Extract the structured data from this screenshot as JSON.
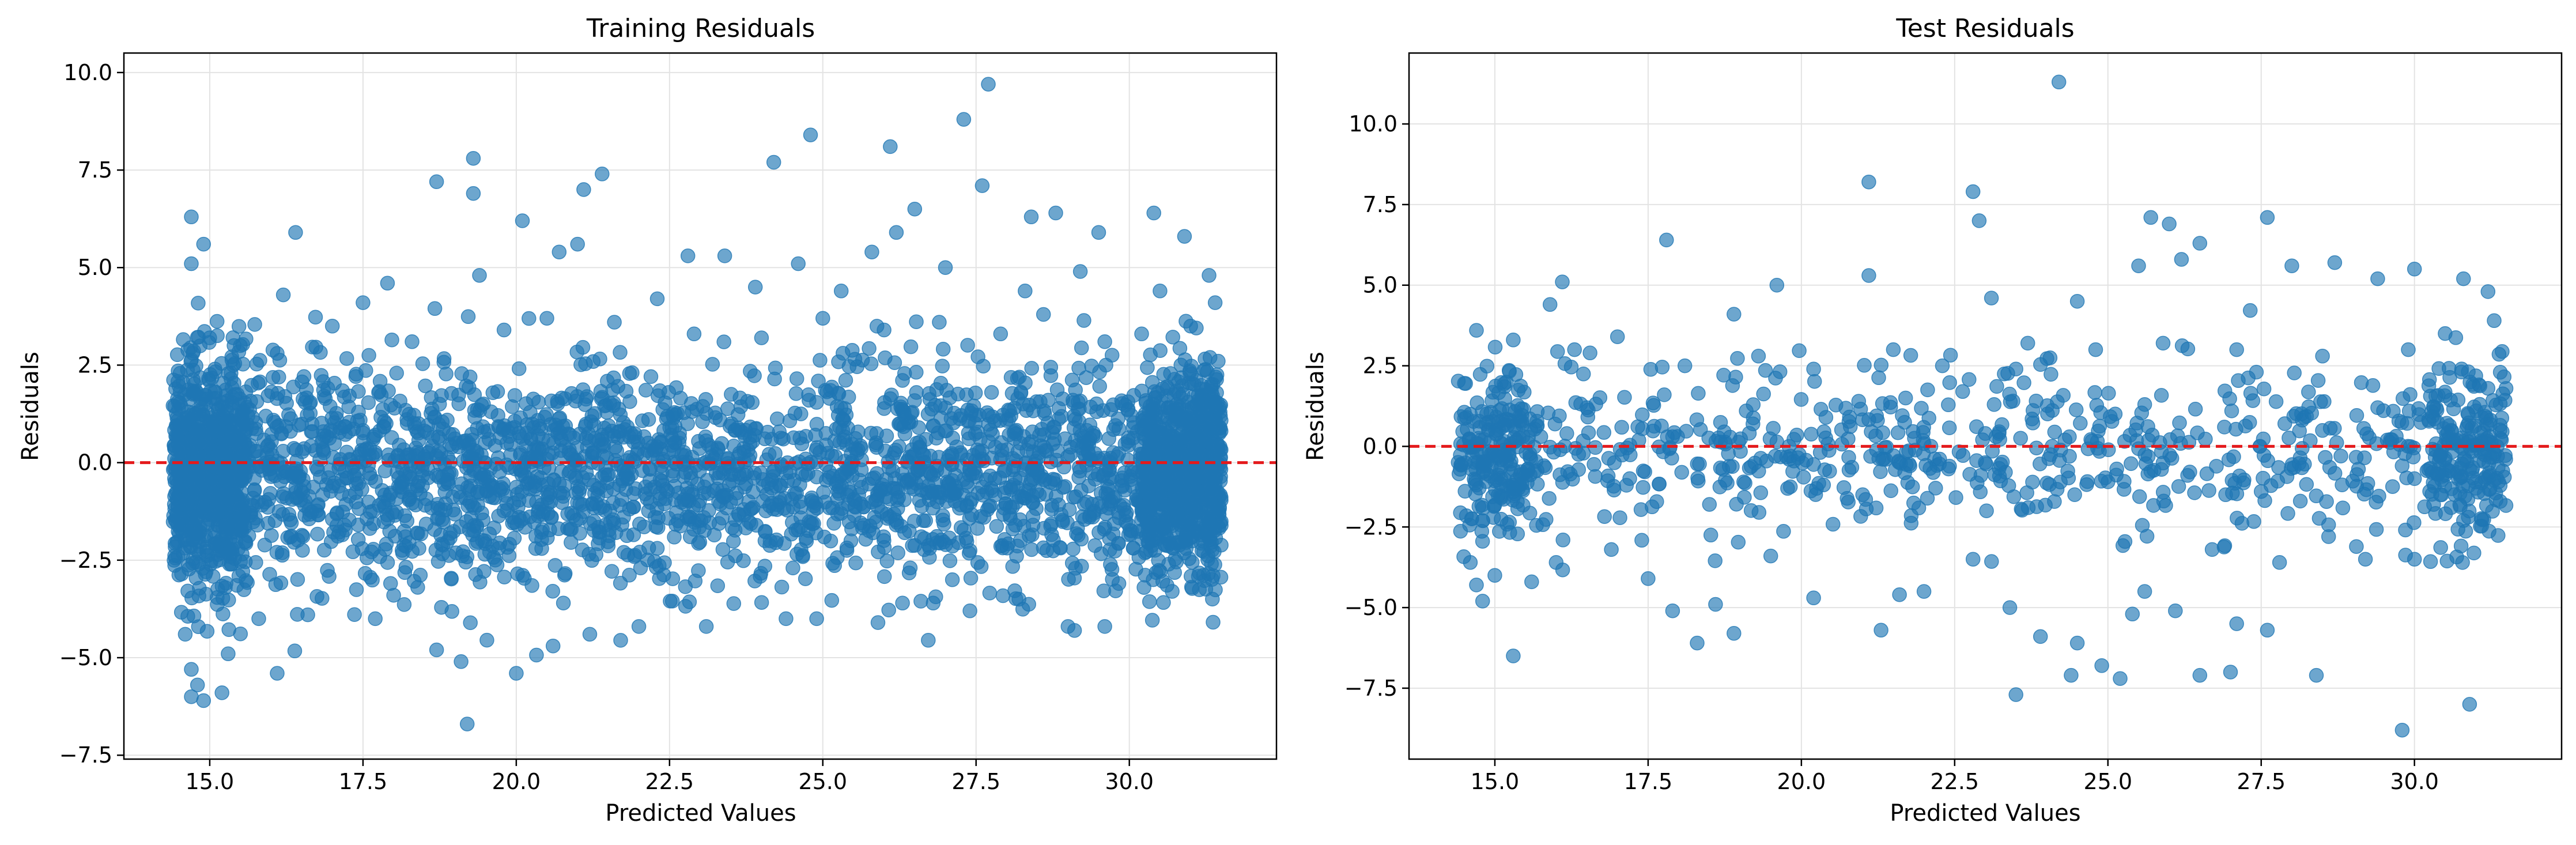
{
  "chart_data": [
    {
      "type": "scatter",
      "title": "Training Residuals",
      "xlabel": "Predicted Values",
      "ylabel": "Residuals",
      "xlim": [
        13.6,
        32.4
      ],
      "ylim": [
        -7.6,
        10.5
      ],
      "xticks": [
        15.0,
        17.5,
        20.0,
        22.5,
        25.0,
        27.5,
        30.0
      ],
      "xtick_labels": [
        "15.0",
        "17.5",
        "20.0",
        "22.5",
        "25.0",
        "27.5",
        "30.0"
      ],
      "yticks": [
        -7.5,
        -5.0,
        -2.5,
        0.0,
        2.5,
        5.0,
        7.5,
        10.0
      ],
      "ytick_labels": [
        "−7.5",
        "−5.0",
        "−2.5",
        "0.0",
        "2.5",
        "5.0",
        "7.5",
        "10.0"
      ],
      "grid": true,
      "reference_line": {
        "y": 0,
        "style": "dashed",
        "color": "#e41a1c"
      },
      "point_color": "#1f77b4",
      "point_alpha": 0.65,
      "series": [
        {
          "values": [
            [
              27.7,
              9.7
            ],
            [
              27.3,
              8.8
            ],
            [
              24.8,
              8.4
            ],
            [
              26.1,
              8.1
            ],
            [
              19.3,
              7.8
            ],
            [
              24.2,
              7.7
            ],
            [
              21.4,
              7.4
            ],
            [
              18.7,
              7.2
            ],
            [
              27.6,
              7.1
            ],
            [
              19.3,
              6.9
            ],
            [
              21.1,
              7.0
            ],
            [
              26.5,
              6.5
            ],
            [
              28.8,
              6.4
            ],
            [
              30.4,
              6.4
            ],
            [
              28.4,
              6.3
            ],
            [
              20.1,
              6.2
            ],
            [
              14.7,
              6.3
            ],
            [
              16.4,
              5.9
            ],
            [
              29.5,
              5.9
            ],
            [
              30.9,
              5.8
            ],
            [
              26.2,
              5.9
            ],
            [
              14.9,
              5.6
            ],
            [
              21.0,
              5.6
            ],
            [
              20.7,
              5.4
            ],
            [
              25.8,
              5.4
            ],
            [
              22.8,
              5.3
            ],
            [
              23.4,
              5.3
            ],
            [
              24.6,
              5.1
            ],
            [
              14.7,
              5.1
            ],
            [
              31.3,
              4.8
            ],
            [
              27.0,
              5.0
            ],
            [
              19.4,
              4.8
            ],
            [
              28.3,
              4.4
            ],
            [
              16.2,
              4.3
            ],
            [
              30.5,
              4.4
            ],
            [
              17.9,
              4.6
            ],
            [
              23.9,
              4.5
            ],
            [
              25.3,
              4.4
            ],
            [
              29.2,
              4.9
            ],
            [
              17.5,
              4.1
            ],
            [
              22.3,
              4.2
            ],
            [
              31.4,
              4.1
            ],
            [
              15.0,
              3.2
            ],
            [
              15.5,
              3.0
            ],
            [
              16.1,
              2.8
            ],
            [
              17.0,
              3.5
            ],
            [
              18.3,
              3.1
            ],
            [
              19.8,
              3.4
            ],
            [
              20.5,
              3.7
            ],
            [
              21.6,
              3.6
            ],
            [
              22.9,
              3.3
            ],
            [
              24.0,
              3.2
            ],
            [
              25.0,
              3.7
            ],
            [
              26.0,
              3.4
            ],
            [
              26.9,
              3.6
            ],
            [
              27.9,
              3.3
            ],
            [
              28.6,
              3.8
            ],
            [
              29.6,
              3.1
            ],
            [
              30.2,
              3.3
            ],
            [
              31.0,
              3.5
            ],
            [
              14.6,
              -4.4
            ],
            [
              14.7,
              -5.3
            ],
            [
              14.8,
              -5.7
            ],
            [
              14.9,
              -6.1
            ],
            [
              14.7,
              -6.0
            ],
            [
              15.2,
              -5.9
            ],
            [
              15.3,
              -4.9
            ],
            [
              16.1,
              -5.4
            ],
            [
              19.2,
              -6.7
            ],
            [
              20.0,
              -5.4
            ],
            [
              19.1,
              -5.1
            ],
            [
              18.7,
              -4.8
            ],
            [
              23.1,
              -4.2
            ],
            [
              24.4,
              -4.0
            ],
            [
              25.9,
              -4.1
            ],
            [
              27.4,
              -3.8
            ],
            [
              29.0,
              -4.2
            ],
            [
              29.6,
              -4.2
            ],
            [
              30.7,
              -3.3
            ],
            [
              21.2,
              -4.4
            ],
            [
              17.7,
              -4.0
            ],
            [
              16.6,
              -3.9
            ],
            [
              22.0,
              -4.2
            ],
            [
              24.9,
              -4.0
            ],
            [
              26.3,
              -3.6
            ],
            [
              28.2,
              -3.5
            ],
            [
              15.8,
              -4.0
            ],
            [
              20.6,
              -4.7
            ],
            [
              18.0,
              -3.4
            ],
            [
              26.8,
              -3.6
            ]
          ]
        }
      ],
      "dense_band": {
        "x_range": [
          14.4,
          31.5
        ],
        "y_core": [
          -2.9,
          2.4
        ],
        "description_count": 4000
      }
    },
    {
      "type": "scatter",
      "title": "Test Residuals",
      "xlabel": "Predicted Values",
      "ylabel": "Residuals",
      "xlim": [
        13.6,
        32.4
      ],
      "ylim": [
        -9.7,
        12.2
      ],
      "xticks": [
        15.0,
        17.5,
        20.0,
        22.5,
        25.0,
        27.5,
        30.0
      ],
      "xtick_labels": [
        "15.0",
        "17.5",
        "20.0",
        "22.5",
        "25.0",
        "27.5",
        "30.0"
      ],
      "yticks": [
        -7.5,
        -5.0,
        -2.5,
        0.0,
        2.5,
        5.0,
        7.5,
        10.0
      ],
      "ytick_labels": [
        "−7.5",
        "−5.0",
        "−2.5",
        "0.0",
        "2.5",
        "5.0",
        "7.5",
        "10.0"
      ],
      "grid": true,
      "reference_line": {
        "y": 0,
        "style": "dashed",
        "color": "#e41a1c"
      },
      "point_color": "#1f77b4",
      "point_alpha": 0.65,
      "series": [
        {
          "values": [
            [
              24.2,
              11.3
            ],
            [
              21.1,
              8.2
            ],
            [
              22.8,
              7.9
            ],
            [
              22.9,
              7.0
            ],
            [
              25.7,
              7.1
            ],
            [
              26.0,
              6.9
            ],
            [
              27.6,
              7.1
            ],
            [
              17.8,
              6.4
            ],
            [
              26.5,
              6.3
            ],
            [
              28.0,
              5.6
            ],
            [
              28.7,
              5.7
            ],
            [
              30.0,
              5.5
            ],
            [
              30.8,
              5.2
            ],
            [
              21.1,
              5.3
            ],
            [
              19.6,
              5.0
            ],
            [
              25.5,
              5.6
            ],
            [
              26.2,
              5.8
            ],
            [
              16.1,
              5.1
            ],
            [
              23.1,
              4.6
            ],
            [
              24.5,
              4.5
            ],
            [
              15.9,
              4.4
            ],
            [
              18.9,
              4.1
            ],
            [
              29.4,
              5.2
            ],
            [
              31.2,
              4.8
            ],
            [
              14.7,
              3.6
            ],
            [
              15.3,
              3.3
            ],
            [
              16.3,
              3.0
            ],
            [
              17.0,
              3.4
            ],
            [
              18.1,
              2.5
            ],
            [
              19.3,
              2.8
            ],
            [
              20.2,
              2.4
            ],
            [
              21.5,
              3.0
            ],
            [
              22.3,
              2.5
            ],
            [
              23.5,
              2.4
            ],
            [
              24.8,
              3.0
            ],
            [
              25.9,
              3.2
            ],
            [
              27.1,
              3.0
            ],
            [
              28.5,
              2.8
            ],
            [
              29.9,
              3.0
            ],
            [
              30.5,
              3.5
            ],
            [
              31.3,
              3.9
            ],
            [
              14.6,
              1.0
            ],
            [
              14.7,
              -1.2
            ],
            [
              14.8,
              -2.3
            ],
            [
              14.9,
              0.5
            ],
            [
              15.1,
              -1.6
            ],
            [
              15.4,
              0.8
            ],
            [
              15.8,
              -0.6
            ],
            [
              16.5,
              1.2
            ],
            [
              17.2,
              -1.0
            ],
            [
              17.9,
              0.3
            ],
            [
              18.5,
              -1.8
            ],
            [
              19.1,
              1.1
            ],
            [
              19.8,
              -0.4
            ],
            [
              20.4,
              0.9
            ],
            [
              21.0,
              -1.5
            ],
            [
              21.7,
              1.5
            ],
            [
              22.4,
              -0.7
            ],
            [
              23.0,
              0.4
            ],
            [
              23.7,
              -1.9
            ],
            [
              24.3,
              0.2
            ],
            [
              25.0,
              -1.1
            ],
            [
              25.6,
              1.3
            ],
            [
              26.3,
              -0.9
            ],
            [
              26.9,
              0.6
            ],
            [
              27.5,
              -1.4
            ],
            [
              28.2,
              0.9
            ],
            [
              28.8,
              -0.3
            ],
            [
              29.4,
              1.2
            ],
            [
              30.0,
              -1.0
            ],
            [
              30.6,
              0.5
            ],
            [
              31.0,
              -1.3
            ],
            [
              31.2,
              1.8
            ],
            [
              31.3,
              -0.2
            ],
            [
              31.4,
              2.3
            ],
            [
              31.1,
              0.9
            ],
            [
              30.9,
              -0.7
            ],
            [
              14.6,
              -3.6
            ],
            [
              14.7,
              -4.3
            ],
            [
              14.8,
              -4.8
            ],
            [
              15.0,
              -4.0
            ],
            [
              15.3,
              -6.5
            ],
            [
              15.6,
              -4.2
            ],
            [
              16.0,
              -3.6
            ],
            [
              16.9,
              -3.2
            ],
            [
              17.5,
              -4.1
            ],
            [
              17.9,
              -5.1
            ],
            [
              18.3,
              -6.1
            ],
            [
              18.9,
              -5.8
            ],
            [
              18.6,
              -4.9
            ],
            [
              19.5,
              -3.4
            ],
            [
              20.2,
              -4.7
            ],
            [
              21.3,
              -5.7
            ],
            [
              21.6,
              -4.6
            ],
            [
              22.0,
              -4.5
            ],
            [
              22.8,
              -3.5
            ],
            [
              23.5,
              -7.7
            ],
            [
              23.4,
              -5.0
            ],
            [
              23.9,
              -5.9
            ],
            [
              24.4,
              -7.1
            ],
            [
              24.5,
              -6.1
            ],
            [
              24.9,
              -6.8
            ],
            [
              25.2,
              -7.2
            ],
            [
              25.4,
              -5.2
            ],
            [
              25.6,
              -4.5
            ],
            [
              26.1,
              -5.1
            ],
            [
              26.5,
              -7.1
            ],
            [
              27.0,
              -7.0
            ],
            [
              27.1,
              -5.5
            ],
            [
              27.6,
              -5.7
            ],
            [
              28.4,
              -7.1
            ],
            [
              29.8,
              -8.8
            ],
            [
              30.9,
              -8.0
            ],
            [
              29.2,
              -3.5
            ],
            [
              30.0,
              -3.5
            ],
            [
              30.8,
              -2.3
            ],
            [
              28.6,
              -2.8
            ],
            [
              27.8,
              -3.6
            ],
            [
              26.7,
              -3.2
            ]
          ]
        }
      ],
      "dense_band": {
        "x_range": [
          14.4,
          31.5
        ],
        "y_core": [
          -2.7,
          2.4
        ],
        "description_count": 1000
      }
    }
  ]
}
